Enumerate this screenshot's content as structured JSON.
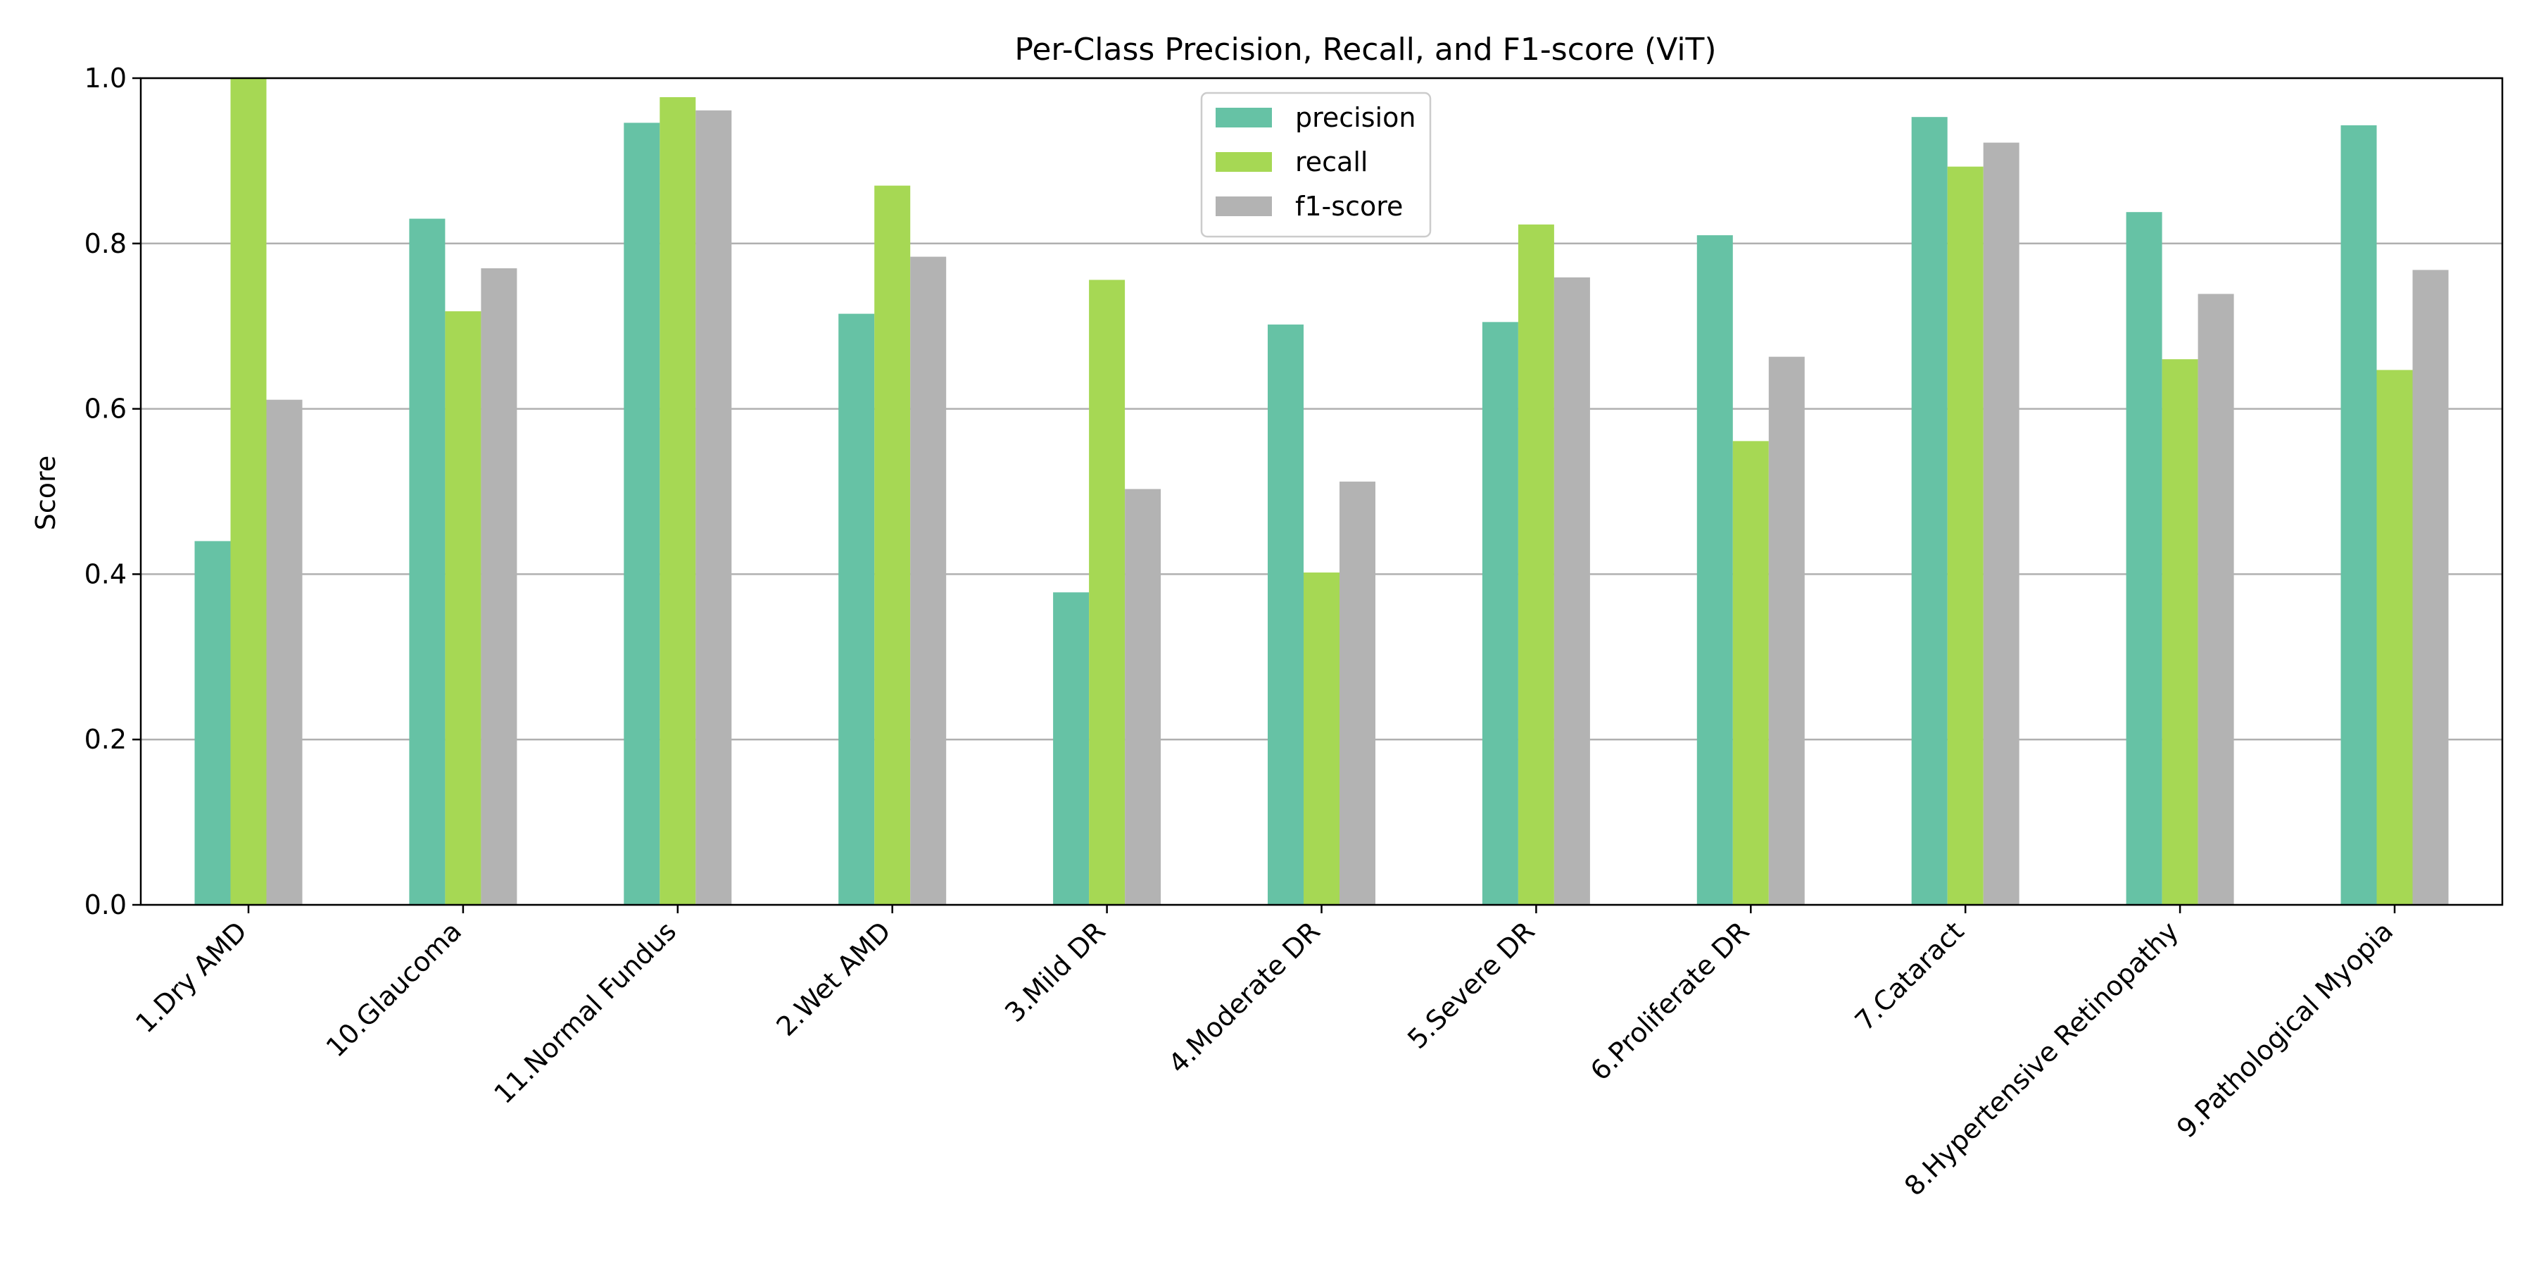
{
  "chart_data": {
    "type": "bar",
    "title": "Per-Class Precision, Recall, and F1-score (ViT)",
    "xlabel": "",
    "ylabel": "Score",
    "ylim": [
      0.0,
      1.0
    ],
    "yticks": [
      "0.0",
      "0.2",
      "0.4",
      "0.6",
      "0.8",
      "1.0"
    ],
    "grid": "horizontal",
    "legend_position": "top-center",
    "categories": [
      "1.Dry AMD",
      "10.Glaucoma",
      "11.Normal Fundus",
      "2.Wet AMD",
      "3.Mild DR",
      "4.Moderate DR",
      "5.Severe DR",
      "6.Proliferate DR",
      "7.Cataract",
      "8.Hypertensive Retinopathy",
      "9.Pathological Myopia"
    ],
    "series": [
      {
        "name": "precision",
        "color": "#66c2a5",
        "values": [
          0.44,
          0.83,
          0.946,
          0.715,
          0.378,
          0.702,
          0.705,
          0.81,
          0.953,
          0.838,
          0.943
        ]
      },
      {
        "name": "recall",
        "color": "#a6d854",
        "values": [
          1.0,
          0.718,
          0.977,
          0.87,
          0.756,
          0.402,
          0.823,
          0.561,
          0.893,
          0.66,
          0.647
        ]
      },
      {
        "name": "f1-score",
        "color": "#b3b3b3",
        "values": [
          0.611,
          0.77,
          0.961,
          0.784,
          0.503,
          0.512,
          0.759,
          0.663,
          0.922,
          0.739,
          0.768
        ]
      }
    ]
  }
}
